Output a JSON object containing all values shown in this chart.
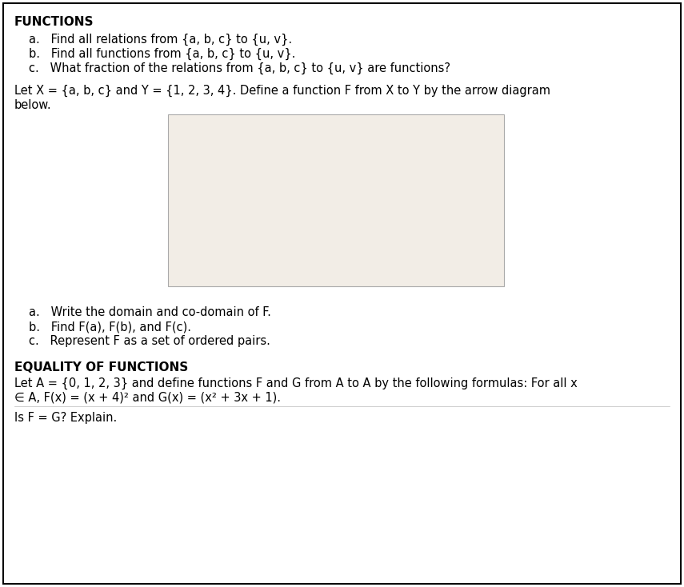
{
  "bg_color": "#ffffff",
  "border_color": "#000000",
  "fig_w": 8.55,
  "fig_h": 7.34,
  "dpi": 100,
  "title1": "FUNCTIONS",
  "title2": "EQUALITY OF FUNCTIONS",
  "items1_a": "a.   Find all relations from {a, b, c} to {u, v}.",
  "items1_b": "b.   Find all functions from {a, b, c} to {u, v}.",
  "items1_c": "c.   What fraction of the relations from {a, b, c} to {u, v} are functions?",
  "para1_line1": "Let X = {a, b, c} and Y = {1, 2, 3, 4}. Define a function F from X to Y by the arrow diagram",
  "para1_line2": "below.",
  "items2_a": "a.   Write the domain and co-domain of F.",
  "items2_b": "b.   Find F(a), F(b), and F(c).",
  "items2_c": "c.   Represent F as a set of ordered pairs.",
  "para2_line1": "Let A = {0, 1, 2, 3} and define functions F and G from A to A by the following formulas: For all x",
  "para2_line2": "∈ A, F(x) = (x + 4)² and G(x) = (x² + 3x + 1).",
  "last_line": "Is F = G? Explain.",
  "diag_bg": "#f2ede6",
  "diag_border": "#aaaaaa",
  "font_body": 10.5,
  "font_title": 11,
  "font_diag": 11
}
